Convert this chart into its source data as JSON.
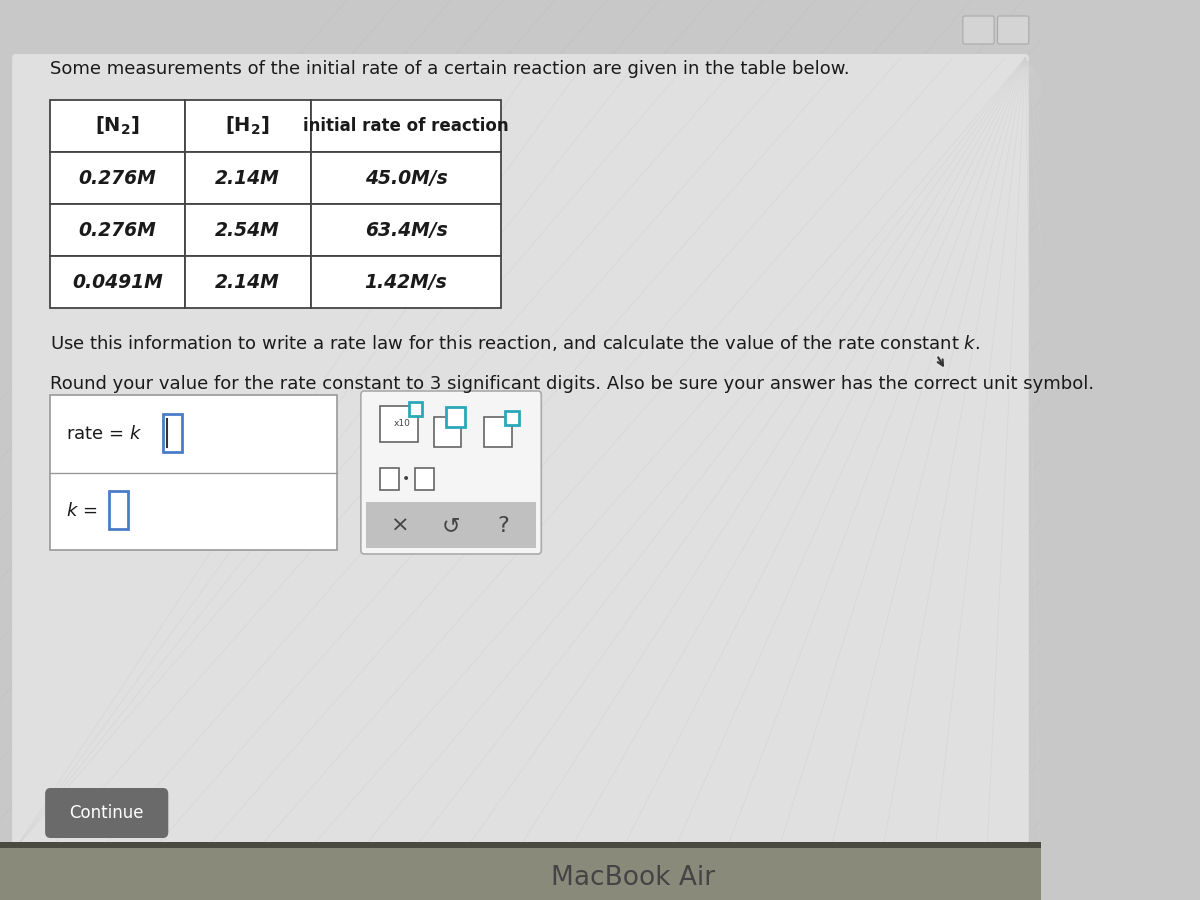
{
  "title_text": "Some measurements of the initial rate of a certain reaction are given in the table below.",
  "col1_header": "[N₂]",
  "col2_header": "[H₂]",
  "col3_header": "initial rate of reaction",
  "row1": [
    "0.276M",
    "2.14M",
    "45.0M/s"
  ],
  "row2": [
    "0.276M",
    "2.54M",
    "63.4M/s"
  ],
  "row3": [
    "0.0491M",
    "2.14M",
    "1.42M/s"
  ],
  "instruction1a": "Use this information to write a rate law for this reaction, and calculate the value of the rate constant ",
  "instruction1b": "k",
  "instruction1c": ".",
  "instruction2": "Round your value for the rate constant to 3 significant digits. Also be sure your answer has the correct unit symbol.",
  "bg_main": "#c8c8c8",
  "bg_panel": "#dcdcdc",
  "bg_stripe": "#c4c4c4",
  "panel_white": "#f0f0f0",
  "table_white": "#ffffff",
  "box_teal": "#2ba8b8",
  "box_blue": "#4a7cc7",
  "btn_gray": "#6a6a6a",
  "form_border": "#aaaaaa",
  "sym_panel_bg": "#f5f5f5",
  "sym_panel_gray": "#c0c0c0",
  "macbook_color": "#444444",
  "text_dark": "#1a1a1a",
  "title_fs": 13,
  "body_fs": 13,
  "table_data_fs": 13.5,
  "table_header_fs": 13
}
